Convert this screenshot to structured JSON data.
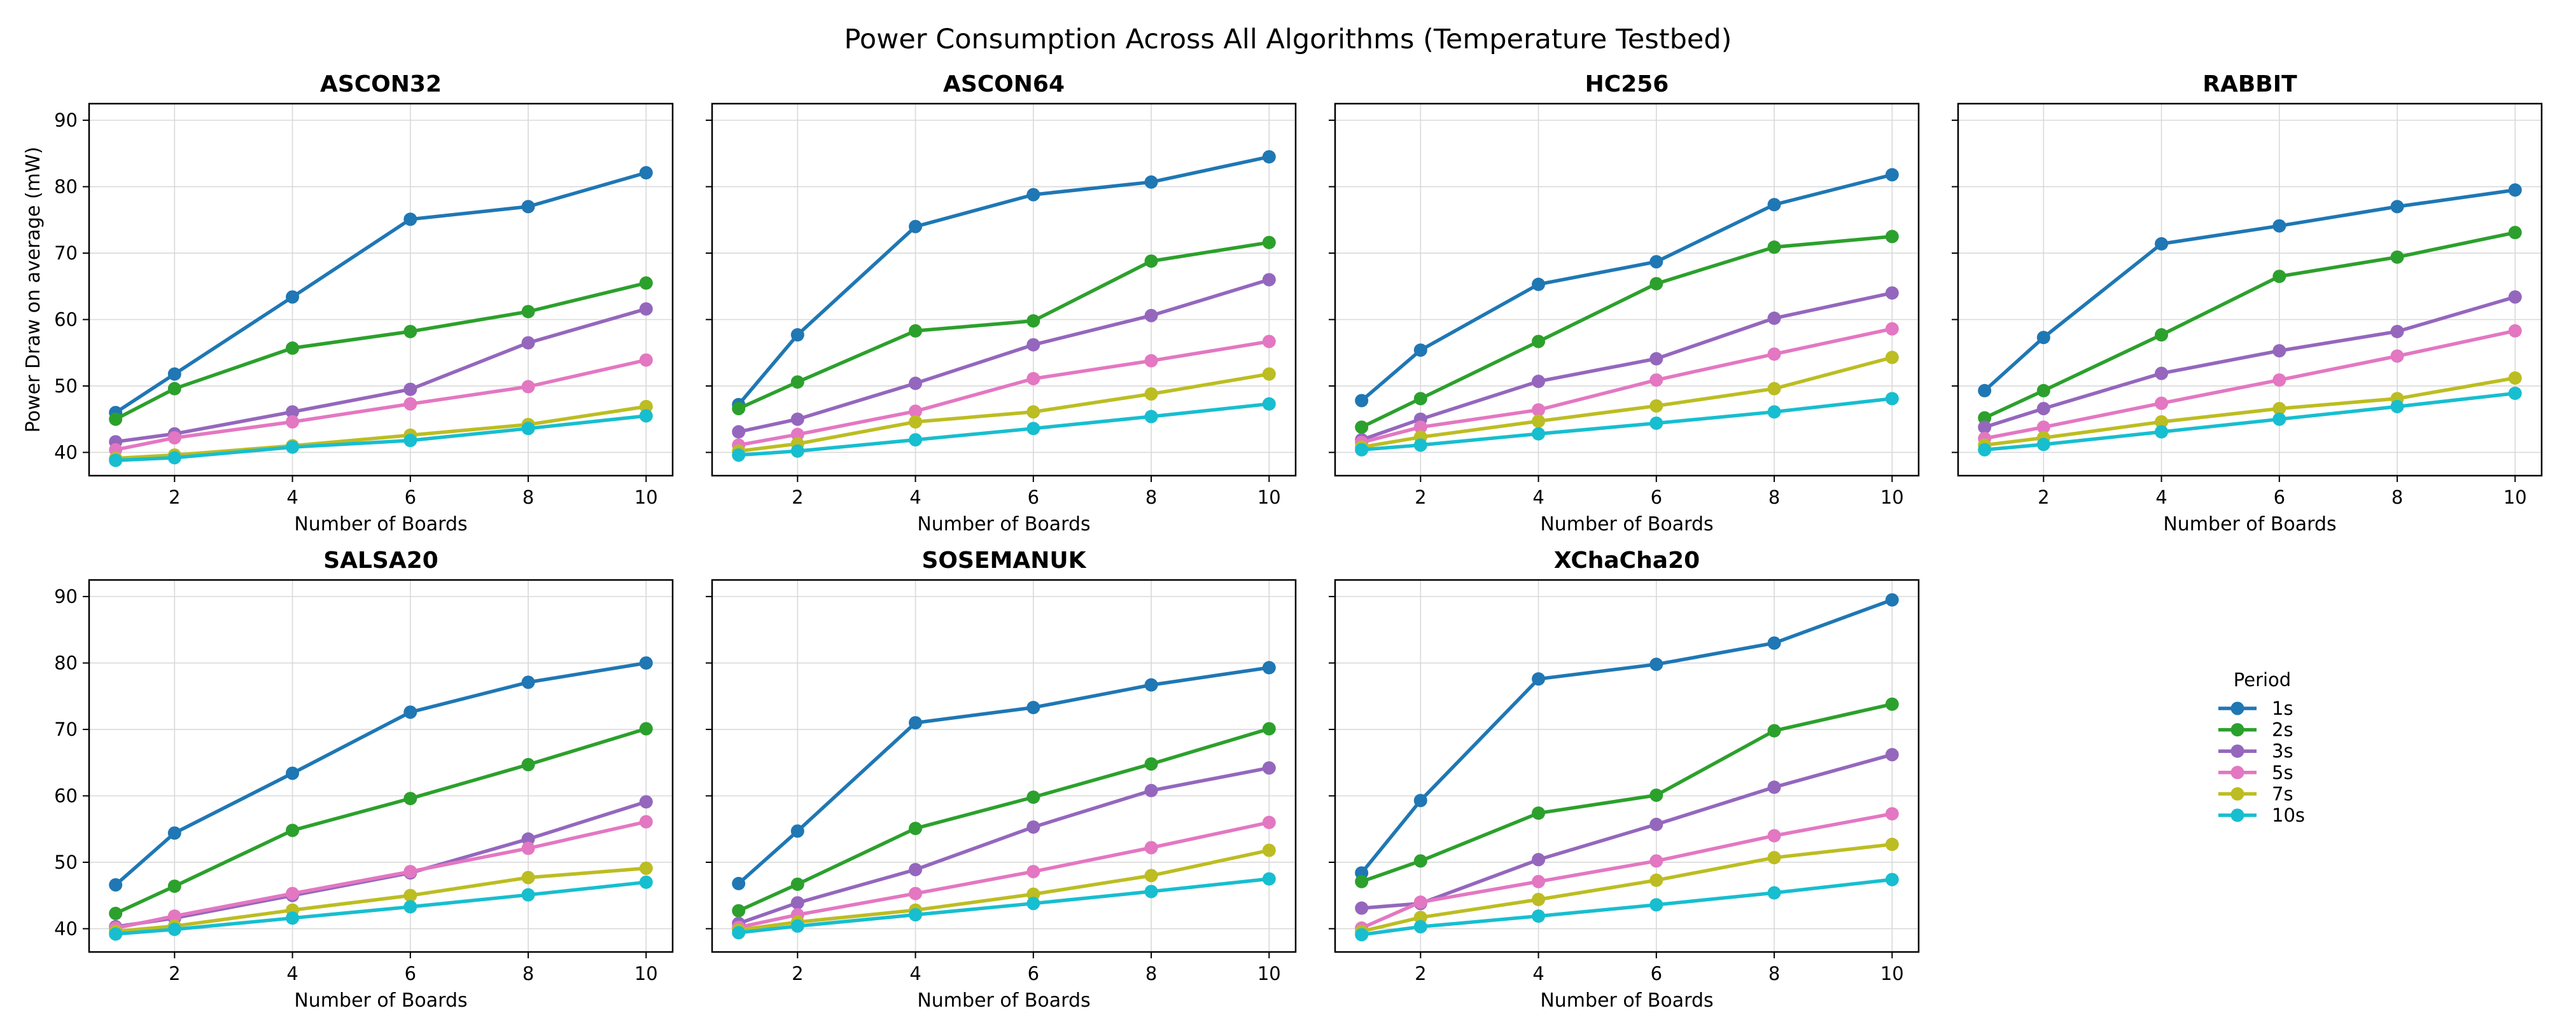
{
  "figure": {
    "title": "Power Consumption Across All Algorithms (Temperature Testbed)"
  },
  "legend": {
    "title": "Period",
    "placement": "right, empty bottom-right panel"
  },
  "chart_data": [
    {
      "type": "line",
      "title": "ASCON32",
      "xlabel": "Number of Boards",
      "ylabel": "Power Draw on average (mW)",
      "x": [
        1,
        2,
        4,
        6,
        8,
        10
      ],
      "xticks": [
        2,
        4,
        6,
        8,
        10
      ],
      "yticks": [
        40,
        50,
        60,
        70,
        80,
        90
      ],
      "xlim": [
        0.55,
        10.45
      ],
      "ylim": [
        36.5,
        92.5
      ],
      "grid": true,
      "series": [
        {
          "name": "1s",
          "color": "#1f77b4",
          "values": [
            46.0,
            51.8,
            63.4,
            75.1,
            77.0,
            82.1
          ]
        },
        {
          "name": "2s",
          "color": "#2ca02c",
          "values": [
            45.0,
            49.6,
            55.7,
            58.2,
            61.2,
            65.5
          ]
        },
        {
          "name": "3s",
          "color": "#9467bd",
          "values": [
            41.6,
            42.8,
            46.1,
            49.5,
            56.5,
            61.6
          ]
        },
        {
          "name": "5s",
          "color": "#e377c2",
          "values": [
            40.4,
            42.2,
            44.6,
            47.3,
            49.9,
            53.9
          ]
        },
        {
          "name": "7s",
          "color": "#bcbd22",
          "values": [
            39.1,
            39.6,
            41.0,
            42.6,
            44.2,
            46.9
          ]
        },
        {
          "name": "10s",
          "color": "#17becf",
          "values": [
            38.8,
            39.2,
            40.8,
            41.8,
            43.6,
            45.5
          ]
        }
      ]
    },
    {
      "type": "line",
      "title": "ASCON64",
      "xlabel": "Number of Boards",
      "x": [
        1,
        2,
        4,
        6,
        8,
        10
      ],
      "xticks": [
        2,
        4,
        6,
        8,
        10
      ],
      "yticks": [
        40,
        50,
        60,
        70,
        80,
        90
      ],
      "xlim": [
        0.55,
        10.45
      ],
      "ylim": [
        36.5,
        92.5
      ],
      "grid": true,
      "series": [
        {
          "name": "1s",
          "color": "#1f77b4",
          "values": [
            47.2,
            57.7,
            74.0,
            78.8,
            80.7,
            84.5
          ]
        },
        {
          "name": "2s",
          "color": "#2ca02c",
          "values": [
            46.6,
            50.6,
            58.3,
            59.8,
            68.8,
            71.6
          ]
        },
        {
          "name": "3s",
          "color": "#9467bd",
          "values": [
            43.1,
            45.0,
            50.4,
            56.2,
            60.6,
            66.0
          ]
        },
        {
          "name": "5s",
          "color": "#e377c2",
          "values": [
            41.1,
            42.7,
            46.2,
            51.1,
            53.8,
            56.7
          ]
        },
        {
          "name": "7s",
          "color": "#bcbd22",
          "values": [
            40.2,
            41.3,
            44.6,
            46.1,
            48.8,
            51.8
          ]
        },
        {
          "name": "10s",
          "color": "#17becf",
          "values": [
            39.6,
            40.2,
            41.9,
            43.6,
            45.4,
            47.3
          ]
        }
      ]
    },
    {
      "type": "line",
      "title": "HC256",
      "xlabel": "Number of Boards",
      "x": [
        1,
        2,
        4,
        6,
        8,
        10
      ],
      "xticks": [
        2,
        4,
        6,
        8,
        10
      ],
      "yticks": [
        40,
        50,
        60,
        70,
        80,
        90
      ],
      "xlim": [
        0.55,
        10.45
      ],
      "ylim": [
        36.5,
        92.5
      ],
      "grid": true,
      "series": [
        {
          "name": "1s",
          "color": "#1f77b4",
          "values": [
            47.8,
            55.4,
            65.3,
            68.7,
            77.3,
            81.8
          ]
        },
        {
          "name": "2s",
          "color": "#2ca02c",
          "values": [
            43.8,
            48.1,
            56.7,
            65.4,
            70.9,
            72.5
          ]
        },
        {
          "name": "3s",
          "color": "#9467bd",
          "values": [
            41.9,
            45.0,
            50.7,
            54.1,
            60.2,
            64.0
          ]
        },
        {
          "name": "5s",
          "color": "#e377c2",
          "values": [
            41.5,
            43.8,
            46.4,
            50.9,
            54.8,
            58.6
          ]
        },
        {
          "name": "7s",
          "color": "#bcbd22",
          "values": [
            40.8,
            42.3,
            44.7,
            47.0,
            49.6,
            54.3
          ]
        },
        {
          "name": "10s",
          "color": "#17becf",
          "values": [
            40.4,
            41.1,
            42.8,
            44.4,
            46.1,
            48.1
          ]
        }
      ]
    },
    {
      "type": "line",
      "title": "RABBIT",
      "xlabel": "Number of Boards",
      "x": [
        1,
        2,
        4,
        6,
        8,
        10
      ],
      "xticks": [
        2,
        4,
        6,
        8,
        10
      ],
      "yticks": [
        40,
        50,
        60,
        70,
        80,
        90
      ],
      "xlim": [
        0.55,
        10.45
      ],
      "ylim": [
        36.5,
        92.5
      ],
      "grid": true,
      "series": [
        {
          "name": "1s",
          "color": "#1f77b4",
          "values": [
            49.3,
            57.3,
            71.4,
            74.1,
            77.0,
            79.5
          ]
        },
        {
          "name": "2s",
          "color": "#2ca02c",
          "values": [
            45.2,
            49.3,
            57.7,
            66.5,
            69.4,
            73.1
          ]
        },
        {
          "name": "3s",
          "color": "#9467bd",
          "values": [
            43.8,
            46.6,
            51.9,
            55.3,
            58.2,
            63.4
          ]
        },
        {
          "name": "5s",
          "color": "#e377c2",
          "values": [
            42.1,
            43.8,
            47.4,
            50.9,
            54.5,
            58.3
          ]
        },
        {
          "name": "7s",
          "color": "#bcbd22",
          "values": [
            41.1,
            42.2,
            44.6,
            46.6,
            48.1,
            51.2
          ]
        },
        {
          "name": "10s",
          "color": "#17becf",
          "values": [
            40.4,
            41.2,
            43.1,
            45.0,
            46.9,
            48.9
          ]
        }
      ]
    },
    {
      "type": "line",
      "title": "SALSA20",
      "xlabel": "Number of Boards",
      "x": [
        1,
        2,
        4,
        6,
        8,
        10
      ],
      "xticks": [
        2,
        4,
        6,
        8,
        10
      ],
      "yticks": [
        40,
        50,
        60,
        70,
        80,
        90
      ],
      "xlim": [
        0.55,
        10.45
      ],
      "ylim": [
        36.5,
        92.5
      ],
      "grid": true,
      "series": [
        {
          "name": "1s",
          "color": "#1f77b4",
          "values": [
            46.6,
            54.4,
            63.4,
            72.6,
            77.1,
            80.0
          ]
        },
        {
          "name": "2s",
          "color": "#2ca02c",
          "values": [
            42.3,
            46.4,
            54.8,
            59.6,
            64.7,
            70.1
          ]
        },
        {
          "name": "3s",
          "color": "#9467bd",
          "values": [
            40.3,
            41.6,
            45.0,
            48.4,
            53.5,
            59.1
          ]
        },
        {
          "name": "5s",
          "color": "#e377c2",
          "values": [
            40.1,
            41.9,
            45.3,
            48.6,
            52.1,
            56.1
          ]
        },
        {
          "name": "7s",
          "color": "#bcbd22",
          "values": [
            39.6,
            40.4,
            42.8,
            45.0,
            47.7,
            49.1
          ]
        },
        {
          "name": "10s",
          "color": "#17becf",
          "values": [
            39.2,
            39.9,
            41.6,
            43.3,
            45.1,
            47.0
          ]
        }
      ]
    },
    {
      "type": "line",
      "title": "SOSEMANUK",
      "xlabel": "Number of Boards",
      "x": [
        1,
        2,
        4,
        6,
        8,
        10
      ],
      "xticks": [
        2,
        4,
        6,
        8,
        10
      ],
      "yticks": [
        40,
        50,
        60,
        70,
        80,
        90
      ],
      "xlim": [
        0.55,
        10.45
      ],
      "ylim": [
        36.5,
        92.5
      ],
      "grid": true,
      "series": [
        {
          "name": "1s",
          "color": "#1f77b4",
          "values": [
            46.8,
            54.7,
            71.0,
            73.3,
            76.7,
            79.3
          ]
        },
        {
          "name": "2s",
          "color": "#2ca02c",
          "values": [
            42.7,
            46.7,
            55.1,
            59.8,
            64.8,
            70.1
          ]
        },
        {
          "name": "3s",
          "color": "#9467bd",
          "values": [
            40.8,
            43.9,
            48.9,
            55.3,
            60.8,
            64.2
          ]
        },
        {
          "name": "5s",
          "color": "#e377c2",
          "values": [
            40.2,
            42.1,
            45.3,
            48.6,
            52.2,
            56.0
          ]
        },
        {
          "name": "7s",
          "color": "#bcbd22",
          "values": [
            39.8,
            41.0,
            42.8,
            45.2,
            48.0,
            51.8
          ]
        },
        {
          "name": "10s",
          "color": "#17becf",
          "values": [
            39.4,
            40.4,
            42.1,
            43.8,
            45.6,
            47.5
          ]
        }
      ]
    },
    {
      "type": "line",
      "title": "XChaCha20",
      "xlabel": "Number of Boards",
      "x": [
        1,
        2,
        4,
        6,
        8,
        10
      ],
      "xticks": [
        2,
        4,
        6,
        8,
        10
      ],
      "yticks": [
        40,
        50,
        60,
        70,
        80,
        90
      ],
      "xlim": [
        0.55,
        10.45
      ],
      "ylim": [
        36.5,
        92.5
      ],
      "grid": true,
      "series": [
        {
          "name": "1s",
          "color": "#1f77b4",
          "values": [
            48.4,
            59.3,
            77.6,
            79.8,
            83.0,
            89.5
          ]
        },
        {
          "name": "2s",
          "color": "#2ca02c",
          "values": [
            47.1,
            50.2,
            57.4,
            60.1,
            69.8,
            73.8
          ]
        },
        {
          "name": "3s",
          "color": "#9467bd",
          "values": [
            43.1,
            43.8,
            50.4,
            55.7,
            61.3,
            66.2
          ]
        },
        {
          "name": "5s",
          "color": "#e377c2",
          "values": [
            40.1,
            44.0,
            47.1,
            50.2,
            54.0,
            57.3
          ]
        },
        {
          "name": "7s",
          "color": "#bcbd22",
          "values": [
            39.6,
            41.7,
            44.4,
            47.3,
            50.7,
            52.7
          ]
        },
        {
          "name": "10s",
          "color": "#17becf",
          "values": [
            39.1,
            40.3,
            41.9,
            43.6,
            45.4,
            47.4
          ]
        }
      ]
    }
  ]
}
